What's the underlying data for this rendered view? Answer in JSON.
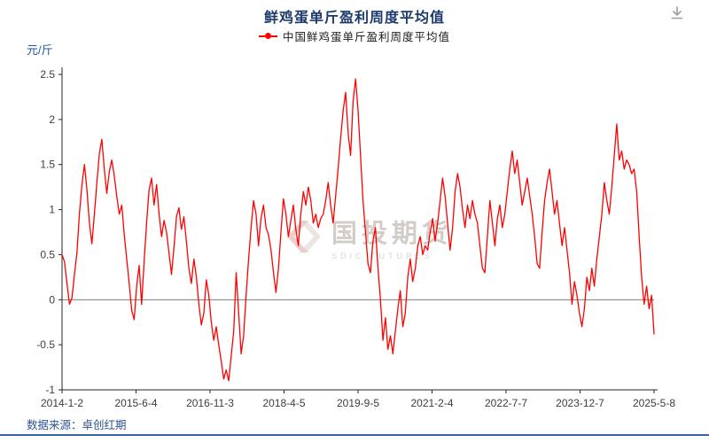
{
  "header": {
    "title": "鲜鸡蛋单斤盈利周度平均值"
  },
  "legend": {
    "marker_color": "#ff0000",
    "label": "中国鲜鸡蛋单斤盈利周度平均值"
  },
  "watermark": {
    "text": "国投期货",
    "subtext": "SDIC FUTURES"
  },
  "footer": {
    "source": "数据来源：卓创红期",
    "accent_color": "#3a62a7"
  },
  "chart_data": {
    "type": "line",
    "title": "鲜鸡蛋单斤盈利周度平均值",
    "ylabel": "元/斤",
    "xlabel": "",
    "ylim": [
      -1,
      2.5
    ],
    "y_ticks": [
      2.5,
      2,
      1.5,
      1,
      0.5,
      0,
      -0.5,
      -1
    ],
    "x_tick_labels": [
      "2014-1-2",
      "2015-6-4",
      "2016-11-3",
      "2018-4-5",
      "2019-9-5",
      "2021-2-4",
      "2022-7-7",
      "2023-12-7",
      "2025-5-8"
    ],
    "grid": false,
    "zero_line": true,
    "legend_position": "top",
    "series": [
      {
        "name": "中国鲜鸡蛋单斤盈利周度平均值",
        "color": "#ff0000",
        "values": [
          0.5,
          0.42,
          0.18,
          -0.05,
          0.02,
          0.28,
          0.52,
          0.95,
          1.28,
          1.5,
          1.22,
          0.85,
          0.62,
          0.95,
          1.3,
          1.62,
          1.78,
          1.45,
          1.18,
          1.42,
          1.55,
          1.38,
          1.15,
          0.95,
          1.05,
          0.72,
          0.45,
          0.18,
          -0.12,
          -0.22,
          0.15,
          0.38,
          -0.05,
          0.42,
          0.85,
          1.22,
          1.35,
          1.05,
          1.28,
          0.95,
          0.7,
          0.88,
          0.75,
          0.52,
          0.28,
          0.58,
          0.92,
          1.02,
          0.78,
          0.92,
          0.65,
          0.35,
          0.18,
          0.45,
          0.25,
          -0.05,
          -0.28,
          -0.15,
          0.22,
          0.05,
          -0.25,
          -0.45,
          -0.3,
          -0.5,
          -0.68,
          -0.88,
          -0.78,
          -0.9,
          -0.62,
          -0.35,
          0.3,
          -0.15,
          -0.6,
          -0.4,
          0.05,
          0.45,
          0.8,
          1.1,
          0.95,
          0.6,
          0.9,
          1.05,
          0.8,
          0.72,
          0.55,
          0.3,
          0.08,
          0.35,
          0.75,
          1.12,
          0.95,
          0.7,
          0.88,
          1.05,
          0.78,
          0.6,
          0.95,
          1.2,
          1.05,
          1.25,
          1.1,
          0.85,
          0.95,
          0.8,
          0.9,
          0.95,
          1.1,
          1.3,
          1.05,
          0.85,
          1.15,
          1.45,
          1.8,
          2.1,
          2.3,
          1.85,
          1.6,
          2.2,
          2.45,
          2.1,
          1.6,
          1.1,
          0.75,
          0.4,
          0.3,
          0.65,
          0.8,
          0.35,
          0.0,
          -0.45,
          -0.2,
          -0.55,
          -0.4,
          -0.6,
          -0.35,
          -0.1,
          0.1,
          -0.3,
          -0.15,
          0.25,
          0.45,
          0.2,
          0.35,
          0.6,
          0.7,
          0.5,
          0.6,
          0.55,
          0.75,
          0.9,
          0.65,
          0.85,
          1.1,
          1.35,
          1.15,
          0.85,
          0.55,
          0.8,
          1.2,
          1.4,
          1.25,
          1.0,
          0.8,
          1.05,
          0.9,
          1.1,
          0.95,
          0.85,
          0.6,
          0.35,
          0.3,
          0.7,
          1.1,
          0.85,
          0.6,
          0.9,
          1.05,
          0.8,
          0.95,
          1.2,
          1.45,
          1.65,
          1.4,
          1.55,
          1.3,
          1.05,
          1.2,
          1.35,
          1.15,
          0.95,
          0.7,
          0.4,
          0.35,
          0.75,
          1.1,
          1.3,
          1.45,
          1.2,
          0.95,
          1.1,
          0.85,
          0.6,
          0.8,
          0.55,
          0.3,
          -0.05,
          0.2,
          0.05,
          -0.15,
          -0.3,
          -0.1,
          0.25,
          0.1,
          0.35,
          0.15,
          0.45,
          0.7,
          0.95,
          1.3,
          1.1,
          0.95,
          1.25,
          1.6,
          1.95,
          1.55,
          1.65,
          1.45,
          1.55,
          1.5,
          1.4,
          1.45,
          1.2,
          0.7,
          0.25,
          -0.05,
          0.15,
          -0.1,
          0.05,
          -0.38
        ]
      }
    ]
  }
}
